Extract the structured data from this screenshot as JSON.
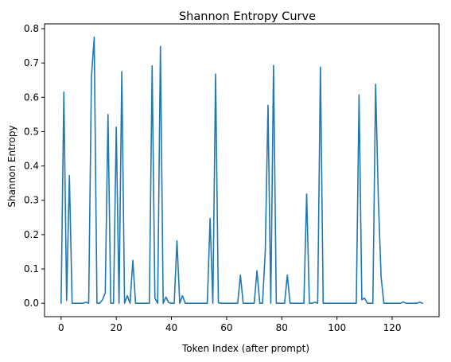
{
  "chart_data": {
    "type": "line",
    "title": "Shannon Entropy Curve",
    "xlabel": "Token Index (after prompt)",
    "ylabel": "Shannon Entropy",
    "xlim": [
      -6,
      137
    ],
    "ylim": [
      -0.039,
      0.814
    ],
    "xticks": [
      0,
      20,
      40,
      60,
      80,
      100,
      120
    ],
    "yticks": [
      0.0,
      0.1,
      0.2,
      0.3,
      0.4,
      0.5,
      0.6,
      0.7,
      0.8
    ],
    "ytick_labels": [
      "0.0",
      "0.1",
      "0.2",
      "0.3",
      "0.4",
      "0.5",
      "0.6",
      "0.7",
      "0.8"
    ],
    "grid": false,
    "series": [
      {
        "color": "#1f77b4",
        "x": [
          0,
          1,
          2,
          3,
          4,
          5,
          6,
          7,
          8,
          9,
          10,
          11,
          12,
          13,
          14,
          15,
          16,
          17,
          18,
          19,
          20,
          21,
          22,
          23,
          24,
          25,
          26,
          27,
          28,
          29,
          30,
          31,
          32,
          33,
          34,
          35,
          36,
          37,
          38,
          39,
          40,
          41,
          42,
          43,
          44,
          45,
          46,
          47,
          48,
          49,
          50,
          51,
          52,
          53,
          54,
          55,
          56,
          57,
          58,
          59,
          60,
          61,
          62,
          63,
          64,
          65,
          66,
          67,
          68,
          69,
          70,
          71,
          72,
          73,
          74,
          75,
          76,
          77,
          78,
          79,
          80,
          81,
          82,
          83,
          84,
          85,
          86,
          87,
          88,
          89,
          90,
          91,
          92,
          93,
          94,
          95,
          96,
          97,
          98,
          99,
          100,
          101,
          102,
          103,
          104,
          105,
          106,
          107,
          108,
          109,
          110,
          111,
          112,
          113,
          114,
          115,
          116,
          117,
          118,
          119,
          120,
          121,
          122,
          123,
          124,
          125,
          126,
          127,
          128,
          129,
          130,
          131
        ],
        "y": [
          0.0,
          0.615,
          0.008,
          0.372,
          0.0,
          0.0,
          0.0,
          0.0,
          0.0,
          0.003,
          0.0,
          0.66,
          0.775,
          0.0,
          0.0,
          0.01,
          0.03,
          0.55,
          0.0,
          0.0,
          0.513,
          0.0,
          0.675,
          0.0,
          0.022,
          0.0,
          0.125,
          0.0,
          0.0,
          0.0,
          0.0,
          0.0,
          0.0,
          0.692,
          0.015,
          0.0,
          0.748,
          0.0,
          0.018,
          0.002,
          0.0,
          0.0,
          0.182,
          0.0,
          0.022,
          0.0,
          0.0,
          0.0,
          0.0,
          0.0,
          0.0,
          0.0,
          0.0,
          0.0,
          0.247,
          0.0,
          0.668,
          0.002,
          0.0,
          0.0,
          0.0,
          0.0,
          0.0,
          0.0,
          0.0,
          0.082,
          0.0,
          0.0,
          0.0,
          0.0,
          0.0,
          0.095,
          0.0,
          0.0,
          0.15,
          0.577,
          0.0,
          0.693,
          0.0,
          0.0,
          0.0,
          0.0,
          0.082,
          0.0,
          0.0,
          0.0,
          0.0,
          0.0,
          0.0,
          0.318,
          0.0,
          0.0,
          0.003,
          0.0,
          0.688,
          0.0,
          0.0,
          0.0,
          0.0,
          0.0,
          0.0,
          0.0,
          0.0,
          0.0,
          0.0,
          0.0,
          0.0,
          0.0,
          0.607,
          0.01,
          0.015,
          0.0,
          0.0,
          0.0,
          0.638,
          0.3,
          0.075,
          0.0,
          0.0,
          0.0,
          0.0,
          0.0,
          0.0,
          0.0,
          0.004,
          0.0,
          0.0,
          0.0,
          0.0,
          0.0,
          0.003,
          0.0
        ]
      }
    ]
  }
}
